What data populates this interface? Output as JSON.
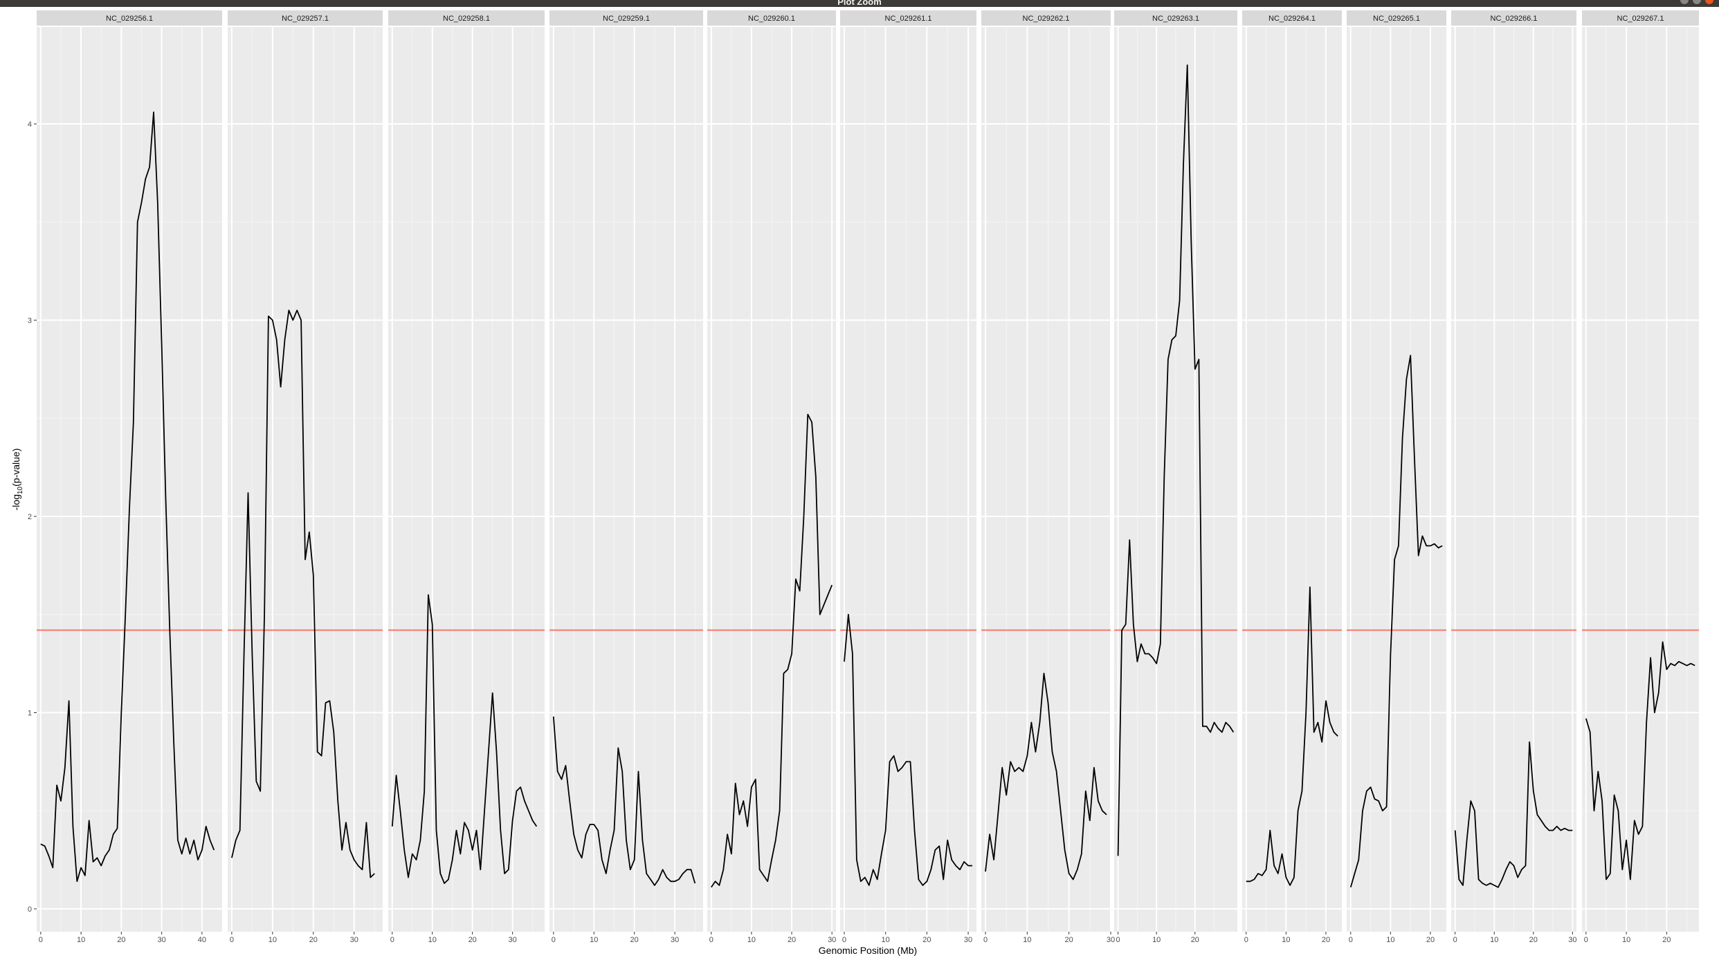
{
  "window": {
    "title": "Plot Zoom"
  },
  "chart_data": {
    "type": "line",
    "title": "",
    "xlabel": "Genomic Position (Mb)",
    "ylabel_prefix": "-log",
    "ylabel_subscript": "10",
    "ylabel_suffix": "(p-value)",
    "ylim": [
      0,
      4.4
    ],
    "yticks": [
      0,
      1,
      2,
      3,
      4
    ],
    "threshold": 1.42,
    "threshold_color": "#f8766d",
    "line_color": "#000000",
    "panel_background": "#ebebeb",
    "strip_background": "#d9d9d9",
    "grid": true,
    "facets": [
      {
        "name": "NC_029256.1",
        "xlim": [
          -1,
          45
        ],
        "xticks": [
          0,
          10,
          20,
          30,
          40
        ],
        "x": [
          0,
          1,
          2,
          3,
          4,
          5,
          6,
          7,
          8,
          9,
          10,
          11,
          12,
          13,
          14,
          15,
          16,
          17,
          18,
          19,
          20,
          21,
          22,
          23,
          24,
          25,
          26,
          27,
          28,
          29,
          30,
          31,
          32,
          33,
          34,
          35,
          36,
          37,
          38,
          39,
          40,
          41,
          42,
          43
        ],
        "y": [
          0.33,
          0.32,
          0.27,
          0.21,
          0.63,
          0.55,
          0.72,
          1.06,
          0.42,
          0.14,
          0.21,
          0.17,
          0.45,
          0.24,
          0.26,
          0.22,
          0.27,
          0.3,
          0.38,
          0.41,
          1.0,
          1.5,
          2.04,
          2.48,
          3.5,
          3.6,
          3.72,
          3.78,
          4.06,
          3.6,
          2.88,
          2.1,
          1.42,
          0.85,
          0.35,
          0.28,
          0.36,
          0.28,
          0.35,
          0.25,
          0.3,
          0.42,
          0.35,
          0.3
        ]
      },
      {
        "name": "NC_029257.1",
        "xlim": [
          -1,
          37
        ],
        "xticks": [
          0,
          10,
          20,
          30
        ],
        "x": [
          0,
          1,
          2,
          3,
          4,
          5,
          6,
          7,
          8,
          9,
          10,
          11,
          12,
          13,
          14,
          15,
          16,
          17,
          18,
          19,
          20,
          21,
          22,
          23,
          24,
          25,
          26,
          27,
          28,
          29,
          30,
          31,
          32,
          33,
          34,
          35
        ],
        "y": [
          0.26,
          0.35,
          0.4,
          1.3,
          2.12,
          1.3,
          0.65,
          0.6,
          1.5,
          3.02,
          3.0,
          2.9,
          2.66,
          2.9,
          3.05,
          3.0,
          3.05,
          3.0,
          1.78,
          1.92,
          1.7,
          0.8,
          0.78,
          1.05,
          1.06,
          0.9,
          0.55,
          0.3,
          0.44,
          0.3,
          0.25,
          0.22,
          0.2,
          0.44,
          0.16,
          0.18
        ]
      },
      {
        "name": "NC_029258.1",
        "xlim": [
          -1,
          38
        ],
        "xticks": [
          0,
          10,
          20,
          30
        ],
        "x": [
          0,
          1,
          2,
          3,
          4,
          5,
          6,
          7,
          8,
          9,
          10,
          11,
          12,
          13,
          14,
          15,
          16,
          17,
          18,
          19,
          20,
          21,
          22,
          23,
          24,
          25,
          26,
          27,
          28,
          29,
          30,
          31,
          32,
          33,
          34,
          35,
          36
        ],
        "y": [
          0.42,
          0.68,
          0.5,
          0.3,
          0.16,
          0.28,
          0.25,
          0.35,
          0.6,
          1.6,
          1.45,
          0.4,
          0.18,
          0.13,
          0.15,
          0.25,
          0.4,
          0.28,
          0.44,
          0.4,
          0.3,
          0.4,
          0.2,
          0.5,
          0.8,
          1.1,
          0.8,
          0.4,
          0.18,
          0.2,
          0.45,
          0.6,
          0.62,
          0.55,
          0.5,
          0.45,
          0.42
        ]
      },
      {
        "name": "NC_029259.1",
        "xlim": [
          -1,
          37
        ],
        "xticks": [
          0,
          10,
          20,
          30
        ],
        "x": [
          0,
          1,
          2,
          3,
          4,
          5,
          6,
          7,
          8,
          9,
          10,
          11,
          12,
          13,
          14,
          15,
          16,
          17,
          18,
          19,
          20,
          21,
          22,
          23,
          24,
          25,
          26,
          27,
          28,
          29,
          30,
          31,
          32,
          33,
          34,
          35
        ],
        "y": [
          0.98,
          0.7,
          0.66,
          0.73,
          0.55,
          0.38,
          0.3,
          0.26,
          0.38,
          0.43,
          0.43,
          0.4,
          0.25,
          0.18,
          0.3,
          0.4,
          0.82,
          0.7,
          0.35,
          0.2,
          0.25,
          0.7,
          0.35,
          0.18,
          0.15,
          0.12,
          0.15,
          0.2,
          0.16,
          0.14,
          0.14,
          0.15,
          0.18,
          0.2,
          0.2,
          0.13
        ]
      },
      {
        "name": "NC_029260.1",
        "xlim": [
          -1,
          31
        ],
        "xticks": [
          0,
          10,
          20,
          30
        ],
        "x": [
          0,
          1,
          2,
          3,
          4,
          5,
          6,
          7,
          8,
          9,
          10,
          11,
          12,
          13,
          14,
          15,
          16,
          17,
          18,
          19,
          20,
          21,
          22,
          23,
          24,
          25,
          26,
          27,
          28,
          29,
          30
        ],
        "y": [
          0.11,
          0.14,
          0.12,
          0.2,
          0.38,
          0.28,
          0.64,
          0.48,
          0.55,
          0.42,
          0.62,
          0.66,
          0.2,
          0.17,
          0.14,
          0.25,
          0.35,
          0.5,
          1.2,
          1.22,
          1.3,
          1.68,
          1.62,
          2.0,
          2.52,
          2.48,
          2.2,
          1.5,
          1.55,
          1.6,
          1.65
        ]
      },
      {
        "name": "NC_029261.1",
        "xlim": [
          -1,
          32
        ],
        "xticks": [
          0,
          10,
          20,
          30
        ],
        "x": [
          0,
          1,
          2,
          3,
          4,
          5,
          6,
          7,
          8,
          9,
          10,
          11,
          12,
          13,
          14,
          15,
          16,
          17,
          18,
          19,
          20,
          21,
          22,
          23,
          24,
          25,
          26,
          27,
          28,
          29,
          30,
          31
        ],
        "y": [
          1.26,
          1.5,
          1.3,
          0.25,
          0.14,
          0.16,
          0.12,
          0.2,
          0.15,
          0.28,
          0.4,
          0.75,
          0.78,
          0.7,
          0.72,
          0.75,
          0.75,
          0.4,
          0.15,
          0.12,
          0.14,
          0.2,
          0.3,
          0.32,
          0.15,
          0.35,
          0.25,
          0.22,
          0.2,
          0.24,
          0.22,
          0.22
        ]
      },
      {
        "name": "NC_029262.1",
        "xlim": [
          -1,
          30
        ],
        "xticks": [
          0,
          10,
          20,
          30
        ],
        "x": [
          0,
          1,
          2,
          3,
          4,
          5,
          6,
          7,
          8,
          9,
          10,
          11,
          12,
          13,
          14,
          15,
          16,
          17,
          18,
          19,
          20,
          21,
          22,
          23,
          24,
          25,
          26,
          27,
          28,
          29
        ],
        "y": [
          0.19,
          0.38,
          0.25,
          0.48,
          0.72,
          0.58,
          0.75,
          0.7,
          0.72,
          0.7,
          0.78,
          0.95,
          0.8,
          0.95,
          1.2,
          1.05,
          0.8,
          0.7,
          0.5,
          0.3,
          0.18,
          0.15,
          0.2,
          0.28,
          0.6,
          0.45,
          0.72,
          0.55,
          0.5,
          0.48
        ]
      },
      {
        "name": "NC_029263.1",
        "xlim": [
          -1,
          31
        ],
        "xticks": [
          0,
          10,
          20
        ],
        "x": [
          0,
          1,
          2,
          3,
          4,
          5,
          6,
          7,
          8,
          9,
          10,
          11,
          12,
          13,
          14,
          15,
          16,
          17,
          18,
          19,
          20,
          21,
          22,
          23,
          24,
          25,
          26,
          27,
          28,
          29,
          30
        ],
        "y": [
          0.27,
          1.42,
          1.45,
          1.88,
          1.45,
          1.26,
          1.35,
          1.3,
          1.3,
          1.28,
          1.25,
          1.35,
          2.2,
          2.8,
          2.9,
          2.92,
          3.1,
          3.8,
          4.3,
          3.4,
          2.75,
          2.8,
          0.93,
          0.93,
          0.9,
          0.95,
          0.92,
          0.9,
          0.95,
          0.93,
          0.9
        ]
      },
      {
        "name": "NC_029264.1",
        "xlim": [
          -1,
          24
        ],
        "xticks": [
          0,
          10,
          20
        ],
        "x": [
          0,
          1,
          2,
          3,
          4,
          5,
          6,
          7,
          8,
          9,
          10,
          11,
          12,
          13,
          14,
          15,
          16,
          17,
          18,
          19,
          20,
          21,
          22,
          23
        ],
        "y": [
          0.14,
          0.14,
          0.15,
          0.18,
          0.17,
          0.2,
          0.4,
          0.22,
          0.18,
          0.28,
          0.16,
          0.12,
          0.16,
          0.5,
          0.6,
          1.0,
          1.64,
          0.9,
          0.95,
          0.85,
          1.06,
          0.95,
          0.9,
          0.88
        ]
      },
      {
        "name": "NC_029265.1",
        "xlim": [
          -1,
          24
        ],
        "xticks": [
          0,
          10,
          20
        ],
        "x": [
          0,
          1,
          2,
          3,
          4,
          5,
          6,
          7,
          8,
          9,
          10,
          11,
          12,
          13,
          14,
          15,
          16,
          17,
          18,
          19,
          20,
          21,
          22,
          23
        ],
        "y": [
          0.11,
          0.18,
          0.25,
          0.5,
          0.6,
          0.62,
          0.56,
          0.55,
          0.5,
          0.52,
          1.3,
          1.78,
          1.85,
          2.4,
          2.7,
          2.82,
          2.3,
          1.8,
          1.9,
          1.85,
          1.85,
          1.86,
          1.84,
          1.85
        ]
      },
      {
        "name": "NC_029266.1",
        "xlim": [
          -1,
          31
        ],
        "xticks": [
          0,
          10,
          20,
          30
        ],
        "x": [
          0,
          1,
          2,
          3,
          4,
          5,
          6,
          7,
          8,
          9,
          10,
          11,
          12,
          13,
          14,
          15,
          16,
          17,
          18,
          19,
          20,
          21,
          22,
          23,
          24,
          25,
          26,
          27,
          28,
          29,
          30
        ],
        "y": [
          0.4,
          0.15,
          0.12,
          0.35,
          0.55,
          0.5,
          0.15,
          0.13,
          0.12,
          0.13,
          0.12,
          0.11,
          0.15,
          0.2,
          0.24,
          0.22,
          0.16,
          0.2,
          0.22,
          0.85,
          0.6,
          0.48,
          0.45,
          0.42,
          0.4,
          0.4,
          0.42,
          0.4,
          0.41,
          0.4,
          0.4
        ]
      },
      {
        "name": "NC_029267.1",
        "xlim": [
          -1,
          28
        ],
        "xticks": [
          0,
          10,
          20
        ],
        "x": [
          0,
          1,
          2,
          3,
          4,
          5,
          6,
          7,
          8,
          9,
          10,
          11,
          12,
          13,
          14,
          15,
          16,
          17,
          18,
          19,
          20,
          21,
          22,
          23,
          24,
          25,
          26,
          27
        ],
        "y": [
          0.97,
          0.9,
          0.5,
          0.7,
          0.55,
          0.15,
          0.18,
          0.58,
          0.5,
          0.2,
          0.35,
          0.15,
          0.45,
          0.38,
          0.42,
          0.95,
          1.28,
          1.0,
          1.1,
          1.36,
          1.22,
          1.25,
          1.24,
          1.26,
          1.25,
          1.24,
          1.25,
          1.24
        ]
      }
    ]
  }
}
